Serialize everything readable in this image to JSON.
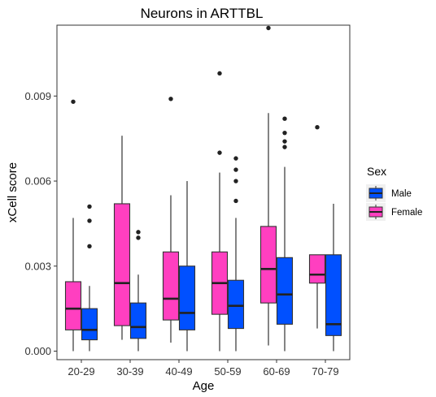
{
  "chart_data": {
    "type": "box",
    "title": "Neurons in ARTTBL",
    "xlabel": "Age",
    "ylabel": "xCell score",
    "categories": [
      "20-29",
      "30-39",
      "40-49",
      "50-59",
      "60-69",
      "70-79"
    ],
    "ylim": [
      -0.0003,
      0.0115
    ],
    "yticks": [
      0.0,
      0.003,
      0.006,
      0.009
    ],
    "ytick_labels": [
      "0.000",
      "0.003",
      "0.006",
      "0.009"
    ],
    "grid": false,
    "legend": {
      "title": "Sex",
      "position": "right",
      "entries": [
        {
          "label": "Male",
          "color": "#0050FF"
        },
        {
          "label": "Female",
          "color": "#FF3FC0"
        }
      ]
    },
    "series": [
      {
        "name": "Female",
        "color": "#FF3FC0",
        "boxes": [
          {
            "min": 0.0,
            "q1": 0.00075,
            "median": 0.0015,
            "q3": 0.00245,
            "max": 0.0047,
            "outliers": [
              0.0088
            ]
          },
          {
            "min": 0.0004,
            "q1": 0.0009,
            "median": 0.0024,
            "q3": 0.0052,
            "max": 0.0076,
            "outliers": []
          },
          {
            "min": 0.0003,
            "q1": 0.0011,
            "median": 0.00185,
            "q3": 0.0035,
            "max": 0.0055,
            "outliers": [
              0.0089
            ]
          },
          {
            "min": 0.0,
            "q1": 0.0013,
            "median": 0.0024,
            "q3": 0.0035,
            "max": 0.0063,
            "outliers": [
              0.007,
              0.0098
            ]
          },
          {
            "min": 0.0002,
            "q1": 0.0017,
            "median": 0.0029,
            "q3": 0.0044,
            "max": 0.0084,
            "outliers": [
              0.0114
            ]
          },
          {
            "min": 0.0008,
            "q1": 0.0024,
            "median": 0.0027,
            "q3": 0.0034,
            "max": 0.0034,
            "outliers": [
              0.0079
            ]
          }
        ]
      },
      {
        "name": "Male",
        "color": "#0050FF",
        "boxes": [
          {
            "min": 0.0,
            "q1": 0.0004,
            "median": 0.00075,
            "q3": 0.0015,
            "max": 0.0023,
            "outliers": [
              0.0037,
              0.0046,
              0.0051
            ]
          },
          {
            "min": 0.0,
            "q1": 0.00045,
            "median": 0.00085,
            "q3": 0.0017,
            "max": 0.0027,
            "outliers": [
              0.004,
              0.0042
            ]
          },
          {
            "min": 0.0,
            "q1": 0.00075,
            "median": 0.00135,
            "q3": 0.003,
            "max": 0.006,
            "outliers": []
          },
          {
            "min": 0.0,
            "q1": 0.0008,
            "median": 0.0016,
            "q3": 0.0025,
            "max": 0.0047,
            "outliers": [
              0.0053,
              0.006,
              0.0064,
              0.0068
            ]
          },
          {
            "min": 0.0,
            "q1": 0.00095,
            "median": 0.002,
            "q3": 0.0033,
            "max": 0.0065,
            "outliers": [
              0.0072,
              0.0074,
              0.0077,
              0.0082
            ]
          },
          {
            "min": 0.0,
            "q1": 0.00055,
            "median": 0.00095,
            "q3": 0.0034,
            "max": 0.0052,
            "outliers": []
          }
        ]
      }
    ]
  }
}
